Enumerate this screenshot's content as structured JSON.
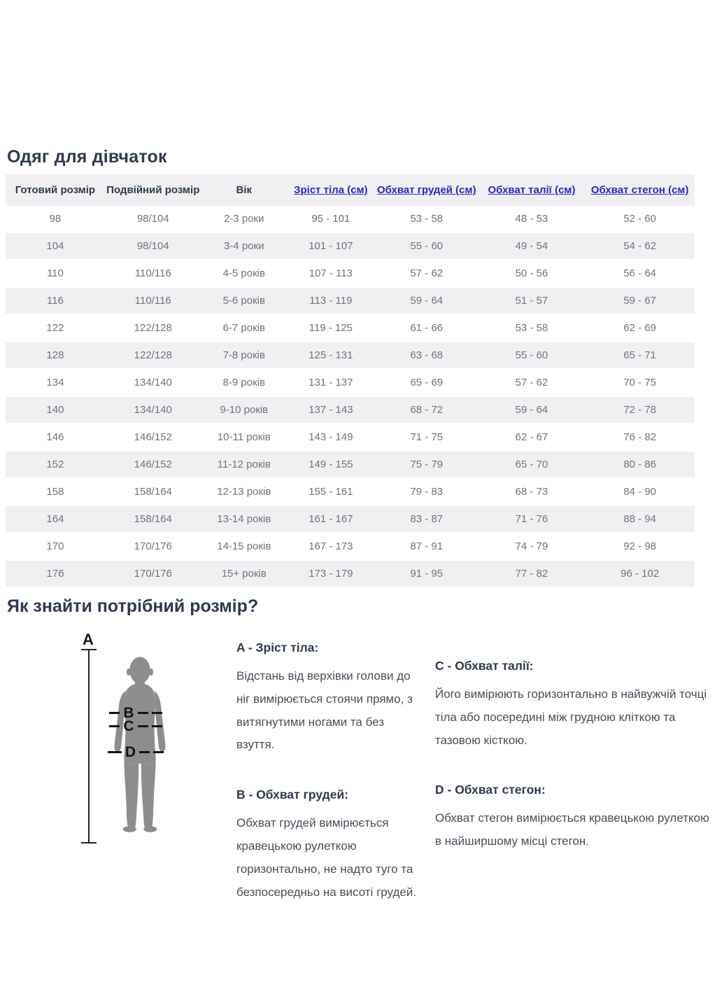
{
  "page": {
    "title": "Одяг для дівчаток"
  },
  "table": {
    "headers": [
      {
        "label": "Готовий розмір",
        "link": false
      },
      {
        "label": "Подвійний розмір",
        "link": false
      },
      {
        "label": "Вік",
        "link": false
      },
      {
        "label": "Зріст тіла (см)",
        "link": true
      },
      {
        "label": "Обхват грудей (см)",
        "link": true
      },
      {
        "label": "Обхват талії (см)",
        "link": true
      },
      {
        "label": "Обхват стегон (см)",
        "link": true
      }
    ],
    "rows": [
      [
        "98",
        "98/104",
        "2-3 роки",
        "95 - 101",
        "53 - 58",
        "48 - 53",
        "52 - 60"
      ],
      [
        "104",
        "98/104",
        "3-4 роки",
        "101 - 107",
        "55 - 60",
        "49 - 54",
        "54 - 62"
      ],
      [
        "110",
        "110/116",
        "4-5 років",
        "107 - 113",
        "57 - 62",
        "50 - 56",
        "56 - 64"
      ],
      [
        "116",
        "110/116",
        "5-6 років",
        "113 - 119",
        "59 - 64",
        "51 - 57",
        "59 - 67"
      ],
      [
        "122",
        "122/128",
        "6-7 років",
        "119 - 125",
        "61 - 66",
        "53 - 58",
        "62 - 69"
      ],
      [
        "128",
        "122/128",
        "7-8 років",
        "125 - 131",
        "63 - 68",
        "55 - 60",
        "65 - 71"
      ],
      [
        "134",
        "134/140",
        "8-9 років",
        "131 - 137",
        "65 - 69",
        "57 - 62",
        "70 - 75"
      ],
      [
        "140",
        "134/140",
        "9-10 років",
        "137 - 143",
        "68 - 72",
        "59 - 64",
        "72 - 78"
      ],
      [
        "146",
        "146/152",
        "10-11 років",
        "143 - 149",
        "71 - 75",
        "62 - 67",
        "76 - 82"
      ],
      [
        "152",
        "146/152",
        "11-12 років",
        "149 - 155",
        "75 - 79",
        "65 - 70",
        "80 - 86"
      ],
      [
        "158",
        "158/164",
        "12-13 років",
        "155 - 161",
        "79 - 83",
        "68 - 73",
        "84 - 90"
      ],
      [
        "164",
        "158/164",
        "13-14 років",
        "161 - 167",
        "83 - 87",
        "71 - 76",
        "88 - 94"
      ],
      [
        "170",
        "170/176",
        "14-15 років",
        "167 - 173",
        "87 - 91",
        "74 - 79",
        "92 - 98"
      ],
      [
        "176",
        "170/176",
        "15+ років",
        "173 - 179",
        "91 - 95",
        "77 - 82",
        "96 - 102"
      ]
    ]
  },
  "guide": {
    "title": "Як знайти потрібний розмір?",
    "figure": {
      "a": "A",
      "b": "B",
      "c": "C",
      "d": "D"
    },
    "blocks": [
      {
        "heading": "A - Зріст тіла:",
        "text": "Відстань від верхівки голови до ніг вимірюється стоячи прямо, з витягнутими ногами та без взуття."
      },
      {
        "heading": "B - Обхват грудей:",
        "text": "Обхват грудей вимірюється кравецькою рулеткою горизонтально, не надто туго та безпосередньо на висоті грудей."
      },
      {
        "heading": "C - Обхват талії:",
        "text": "Його вимірюють горизонтально в найвужчій точці тіла або посередині між грудною кліткою та тазовою кісткою."
      },
      {
        "heading": "D - Обхват стегон:",
        "text": "Обхват стегон вимірюється кравецькою рулеткою в найширшому місці стегон."
      }
    ]
  },
  "colors": {
    "heading_navy": "#2e3a4f",
    "link_blue": "#2727cd",
    "row_stripe_gray": "#f0f0f2",
    "cell_text_gray": "#6e747b",
    "body_text_gray": "#454f5a",
    "silhouette_gray": "#8d8d8d",
    "marker_black": "#141414"
  }
}
